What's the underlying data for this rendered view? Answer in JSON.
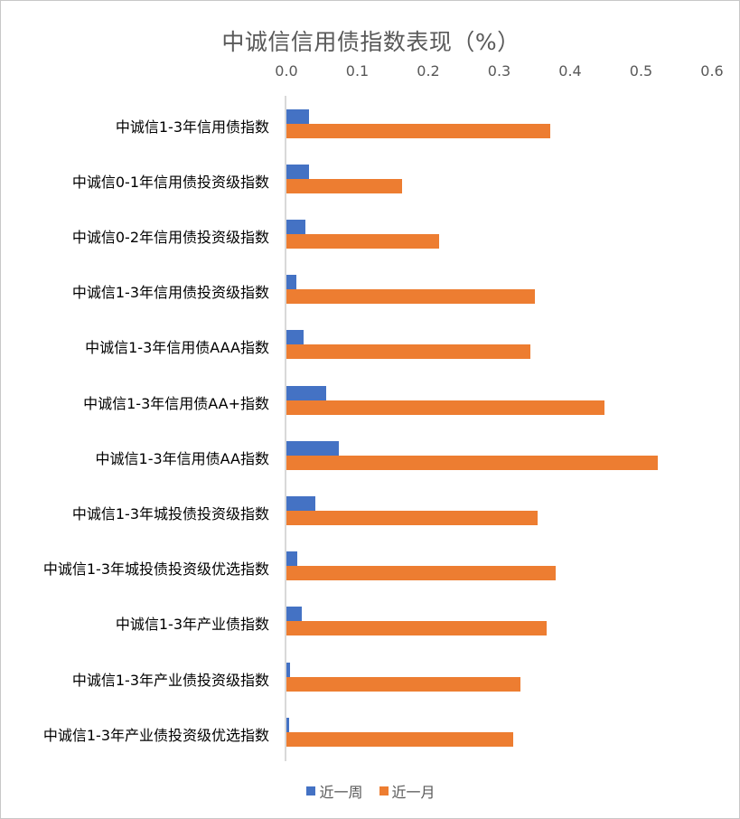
{
  "chart_data": {
    "type": "bar",
    "orientation": "horizontal",
    "title": "中诚信信用债指数表现（%）",
    "xlabel": "",
    "ylabel": "",
    "xlim": [
      0.0,
      0.6
    ],
    "x_ticks": [
      "0.0",
      "0.1",
      "0.2",
      "0.3",
      "0.4",
      "0.5",
      "0.6"
    ],
    "grid": false,
    "legend_position": "bottom",
    "categories": [
      "中诚信1-3年信用债指数",
      "中诚信0-1年信用债投资级指数",
      "中诚信0-2年信用债投资级指数",
      "中诚信1-3年信用债投资级指数",
      "中诚信1-3年信用债AAA指数",
      "中诚信1-3年信用债AA+指数",
      "中诚信1-3年信用债AA指数",
      "中诚信1-3年城投债投资级指数",
      "中诚信1-3年城投债投资级优选指数",
      "中诚信1-3年产业债指数",
      "中诚信1-3年产业债投资级指数",
      "中诚信1-3年产业债投资级优选指数"
    ],
    "series": [
      {
        "name": "近一周",
        "color": "#4472c4",
        "values": [
          0.032,
          0.032,
          0.027,
          0.014,
          0.024,
          0.056,
          0.074,
          0.041,
          0.015,
          0.022,
          0.005,
          0.004
        ]
      },
      {
        "name": "近一月",
        "color": "#ed7d31",
        "values": [
          0.372,
          0.163,
          0.215,
          0.35,
          0.344,
          0.448,
          0.524,
          0.354,
          0.38,
          0.367,
          0.33,
          0.32
        ]
      }
    ]
  }
}
